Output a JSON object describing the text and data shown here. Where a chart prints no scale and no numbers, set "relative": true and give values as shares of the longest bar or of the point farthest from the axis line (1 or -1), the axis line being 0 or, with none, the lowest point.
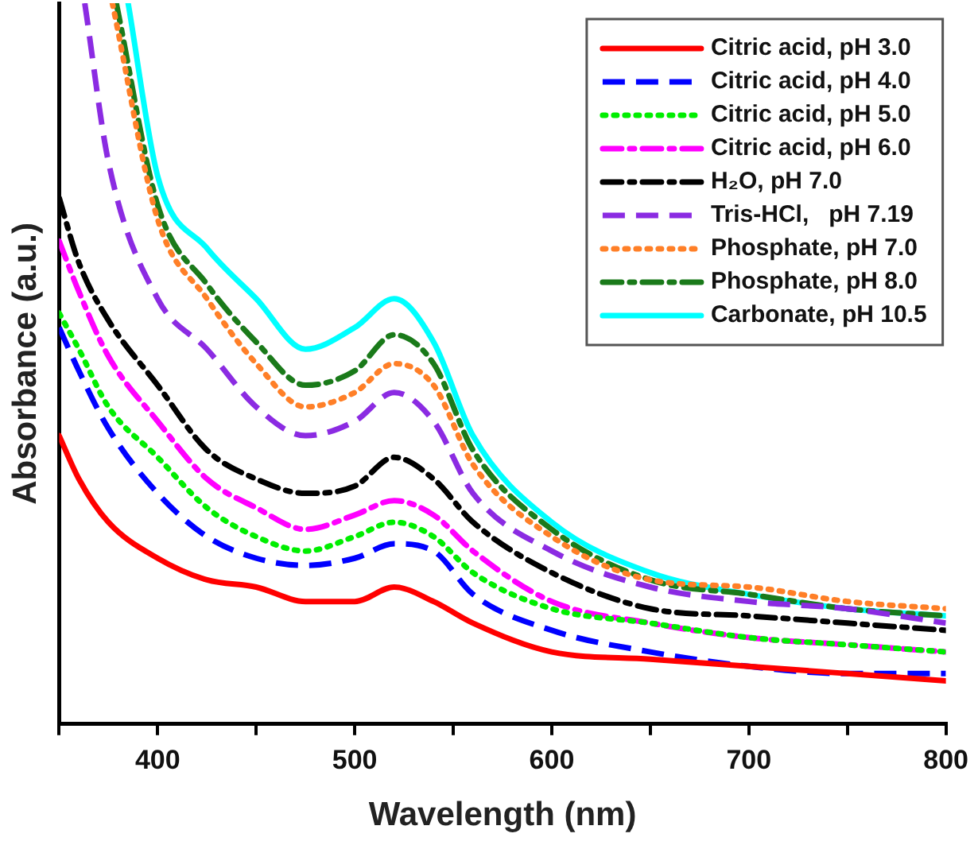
{
  "chart_data": {
    "type": "line",
    "xlabel": "Wavelength (nm)",
    "ylabel": "Absorbance (a.u.)",
    "relative": true,
    "xlim": [
      350,
      800
    ],
    "xticks": [
      {
        "value": 350,
        "label": null
      },
      400,
      {
        "value": 450,
        "label": null
      },
      500,
      {
        "value": 550,
        "label": null
      },
      600,
      {
        "value": 650,
        "label": null
      },
      700,
      {
        "value": 750,
        "label": null
      },
      800
    ],
    "grid": false,
    "legend": "top right",
    "marker": "none",
    "x": [
      350,
      360,
      375,
      400,
      425,
      450,
      475,
      500,
      520,
      540,
      560,
      600,
      650,
      700,
      750,
      800
    ],
    "series": [
      {
        "name": "Citric acid, pH 3.0",
        "color": "#ff0000",
        "line_style": "solid",
        "values": [
          0.4,
          0.34,
          0.28,
          0.23,
          0.2,
          0.19,
          0.17,
          0.17,
          0.19,
          0.17,
          0.14,
          0.1,
          0.09,
          0.08,
          0.07,
          0.06
        ]
      },
      {
        "name": "Citric acid, pH 4.0",
        "color": "#0000ff",
        "line_style": "dashed",
        "values": [
          0.55,
          0.49,
          0.41,
          0.32,
          0.26,
          0.23,
          0.22,
          0.23,
          0.25,
          0.24,
          0.18,
          0.13,
          0.1,
          0.08,
          0.07,
          0.07
        ]
      },
      {
        "name": "Citric acid, pH 5.0",
        "color": "#00ee00",
        "line_style": "dotted",
        "values": [
          0.57,
          0.52,
          0.44,
          0.37,
          0.3,
          0.26,
          0.24,
          0.26,
          0.28,
          0.26,
          0.21,
          0.16,
          0.14,
          0.12,
          0.11,
          0.1
        ]
      },
      {
        "name": "Citric acid, pH 6.0",
        "color": "#ff00ff",
        "line_style": "dashdot",
        "values": [
          0.67,
          0.6,
          0.51,
          0.42,
          0.34,
          0.3,
          0.27,
          0.29,
          0.31,
          0.29,
          0.24,
          0.17,
          0.14,
          0.12,
          0.11,
          0.1
        ]
      },
      {
        "name": "H₂O, pH 7.0",
        "color": "#000000",
        "line_style": "dashdot",
        "values": [
          0.73,
          0.64,
          0.56,
          0.47,
          0.38,
          0.34,
          0.32,
          0.33,
          0.37,
          0.34,
          0.28,
          0.21,
          0.16,
          0.15,
          0.14,
          0.13
        ]
      },
      {
        "name": "Tris-HCl,   pH 7.19",
        "color": "#8b2be2",
        "line_style": "dashed",
        "x": [
          363,
          375,
          400,
          425,
          450,
          475,
          500,
          520,
          540,
          560,
          600,
          650,
          700,
          750,
          800
        ],
        "values": [
          1.0,
          0.78,
          0.59,
          0.52,
          0.44,
          0.4,
          0.42,
          0.46,
          0.42,
          0.32,
          0.24,
          0.19,
          0.17,
          0.16,
          0.14
        ]
      },
      {
        "name": "Phosphate, pH 7.0",
        "color": "#ff7f27",
        "line_style": "dotted",
        "x": [
          377,
          400,
          425,
          450,
          475,
          500,
          520,
          540,
          560,
          600,
          650,
          700,
          750,
          800
        ],
        "values": [
          1.0,
          0.7,
          0.59,
          0.5,
          0.44,
          0.46,
          0.5,
          0.47,
          0.36,
          0.26,
          0.2,
          0.19,
          0.17,
          0.16
        ]
      },
      {
        "name": "Phosphate, pH 8.0",
        "color": "#1a7a1a",
        "line_style": "dashdot",
        "x": [
          379,
          400,
          425,
          450,
          475,
          500,
          520,
          540,
          560,
          600,
          650,
          700,
          750,
          800
        ],
        "values": [
          1.0,
          0.72,
          0.61,
          0.53,
          0.47,
          0.49,
          0.54,
          0.5,
          0.38,
          0.27,
          0.2,
          0.18,
          0.16,
          0.15
        ]
      },
      {
        "name": "Carbonate, pH 10.5",
        "color": "#00ffff",
        "line_style": "solid",
        "x": [
          385,
          400,
          425,
          450,
          475,
          500,
          520,
          540,
          560,
          600,
          650,
          700,
          750,
          800
        ],
        "values": [
          1.0,
          0.76,
          0.66,
          0.59,
          0.52,
          0.55,
          0.59,
          0.53,
          0.4,
          0.28,
          0.21,
          0.18,
          0.16,
          0.15
        ]
      }
    ]
  }
}
